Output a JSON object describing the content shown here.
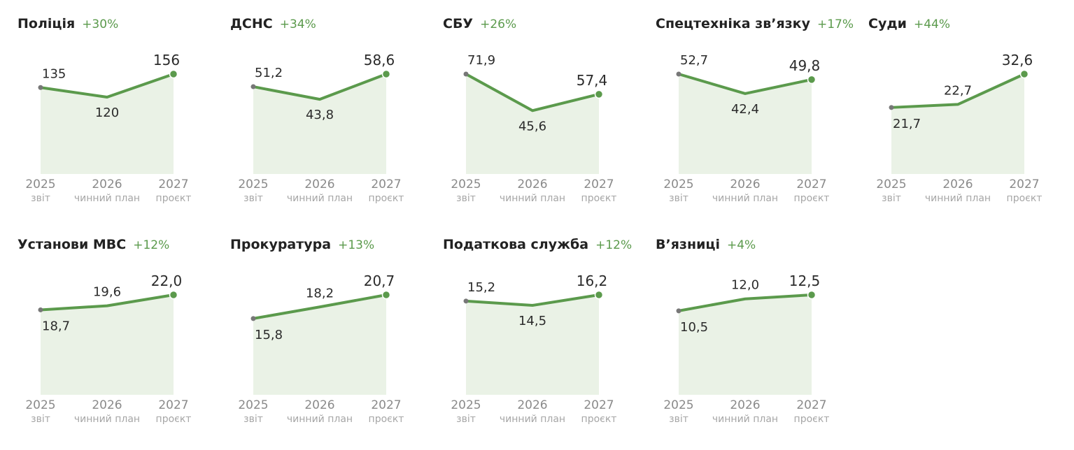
{
  "colors": {
    "accent": "#5b9a4c",
    "area_fill": "#eaf2e6",
    "start_dot": "#777777",
    "title": "#222222",
    "value_text": "#2b2b2b",
    "axis_year": "#8a8a8a",
    "axis_sub": "#a6a6a6"
  },
  "chart_data": {
    "type": "area",
    "x": [
      "2025",
      "2026",
      "2027"
    ],
    "x_sublabels": [
      "звіт",
      "чинний план",
      "проєкт"
    ],
    "grid": false,
    "panels": [
      {
        "title": "Поліція",
        "change": "+30%",
        "values": [
          135,
          120,
          156
        ],
        "labels": [
          "135",
          "120",
          "156"
        ],
        "ylim": [
          0,
          156
        ]
      },
      {
        "title": "ДСНС",
        "change": "+34%",
        "values": [
          51.2,
          43.8,
          58.6
        ],
        "labels": [
          "51,2",
          "43,8",
          "58,6"
        ],
        "ylim": [
          0,
          58.6
        ]
      },
      {
        "title": "СБУ",
        "change": "+26%",
        "values": [
          71.9,
          45.6,
          57.4
        ],
        "labels": [
          "71,9",
          "45,6",
          "57,4"
        ],
        "ylim": [
          0,
          71.9
        ]
      },
      {
        "title": "Спецтехніка зв’язку",
        "change": "+17%",
        "values": [
          52.7,
          42.4,
          49.8
        ],
        "labels": [
          "52,7",
          "42,4",
          "49,8"
        ],
        "ylim": [
          0,
          52.7
        ]
      },
      {
        "title": "Суди",
        "change": "+44%",
        "values": [
          21.7,
          22.7,
          32.6
        ],
        "labels": [
          "21,7",
          "22,7",
          "32,6"
        ],
        "ylim": [
          0,
          32.6
        ]
      },
      {
        "title": "Установи МВС",
        "change": "+12%",
        "values": [
          18.7,
          19.6,
          22.0
        ],
        "labels": [
          "18,7",
          "19,6",
          "22,0"
        ],
        "ylim": [
          0,
          22.0
        ]
      },
      {
        "title": "Прокуратура",
        "change": "+13%",
        "values": [
          15.8,
          18.2,
          20.7
        ],
        "labels": [
          "15,8",
          "18,2",
          "20,7"
        ],
        "ylim": [
          0,
          20.7
        ]
      },
      {
        "title": "Податкова служба",
        "change": "+12%",
        "values": [
          15.2,
          14.5,
          16.2
        ],
        "labels": [
          "15,2",
          "14,5",
          "16,2"
        ],
        "ylim": [
          0,
          16.2
        ]
      },
      {
        "title": "В’язниці",
        "change": "+4%",
        "values": [
          10.5,
          12.0,
          12.5
        ],
        "labels": [
          "10,5",
          "12,0",
          "12,5"
        ],
        "ylim": [
          0,
          12.5
        ]
      }
    ]
  }
}
